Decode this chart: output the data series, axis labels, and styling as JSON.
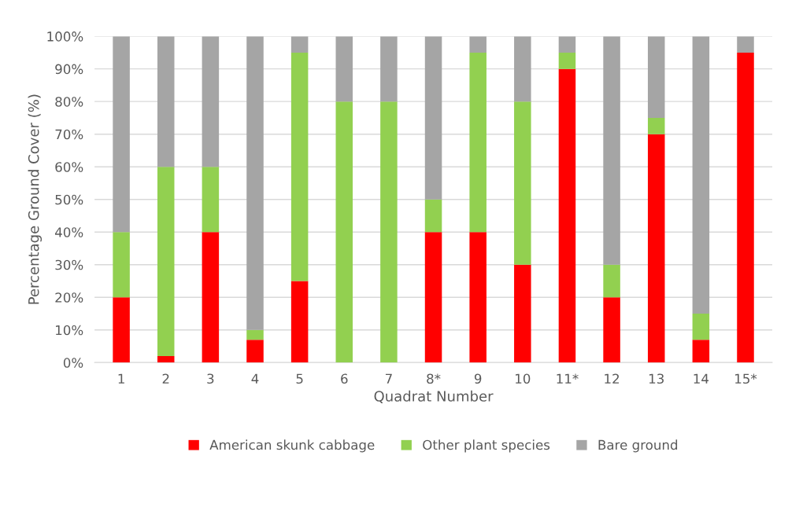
{
  "chart_data": {
    "type": "bar",
    "stacked": true,
    "xlabel": "Quadrat Number",
    "ylabel": "Percentage Ground Cover (%)",
    "categories": [
      "1",
      "2",
      "3",
      "4",
      "5",
      "6",
      "7",
      "8*",
      "9",
      "10",
      "11*",
      "12",
      "13",
      "14",
      "15*"
    ],
    "series": [
      {
        "name": "American skunk cabbage",
        "color": "#ff0000",
        "values": [
          20,
          2,
          40,
          7,
          25,
          0,
          0,
          40,
          40,
          30,
          90,
          20,
          70,
          7,
          95
        ]
      },
      {
        "name": "Other plant species",
        "color": "#92d050",
        "values": [
          20,
          58,
          20,
          3,
          70,
          80,
          80,
          10,
          55,
          50,
          5,
          10,
          5,
          8,
          0
        ]
      },
      {
        "name": "Bare ground",
        "color": "#a5a5a5",
        "values": [
          60,
          40,
          40,
          90,
          5,
          20,
          20,
          50,
          5,
          20,
          5,
          70,
          25,
          85,
          5
        ]
      }
    ],
    "ylim": [
      0,
      100
    ],
    "yticks": [
      {
        "value": 0,
        "label": "0%"
      },
      {
        "value": 10,
        "label": "10%"
      },
      {
        "value": 20,
        "label": "20%"
      },
      {
        "value": 30,
        "label": "30%"
      },
      {
        "value": 40,
        "label": "40%"
      },
      {
        "value": 50,
        "label": "50%"
      },
      {
        "value": 60,
        "label": "60%"
      },
      {
        "value": 70,
        "label": "70%"
      },
      {
        "value": 80,
        "label": "80%"
      },
      {
        "value": 90,
        "label": "90%"
      },
      {
        "value": 100,
        "label": "100%"
      }
    ],
    "grid": "y",
    "legend": "bottom"
  }
}
